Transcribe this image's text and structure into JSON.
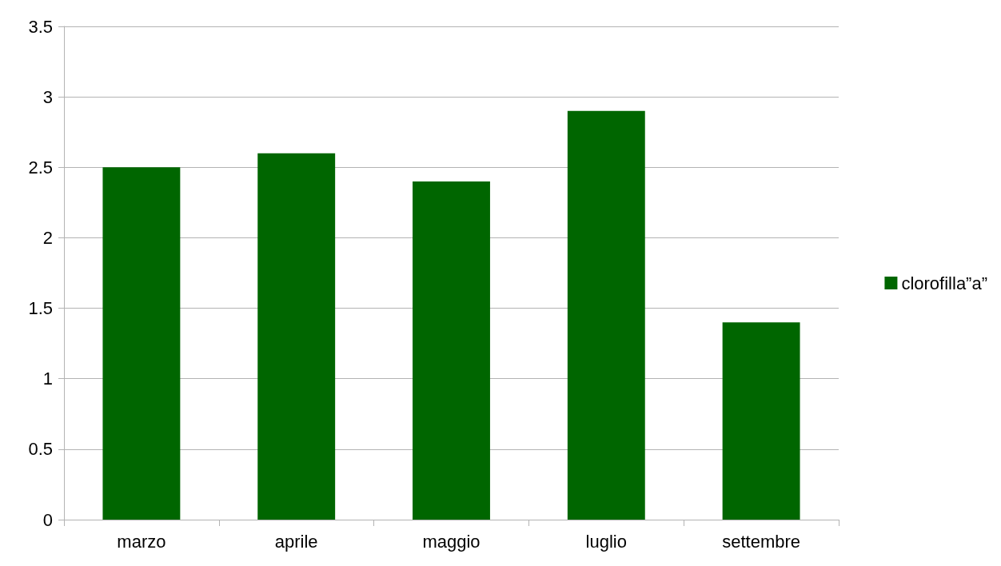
{
  "chart_data": {
    "type": "bar",
    "categories": [
      "marzo",
      "aprile",
      "maggio",
      "luglio",
      "settembre"
    ],
    "series": [
      {
        "name": "clorofilla”a”",
        "color": "#006600",
        "values": [
          2.5,
          2.6,
          2.4,
          2.9,
          1.4
        ]
      }
    ],
    "ylim": [
      0,
      3.5
    ],
    "yticks": [
      0,
      0.5,
      1,
      1.5,
      2,
      2.5,
      3,
      3.5
    ],
    "grid": "y",
    "legend": "right"
  }
}
